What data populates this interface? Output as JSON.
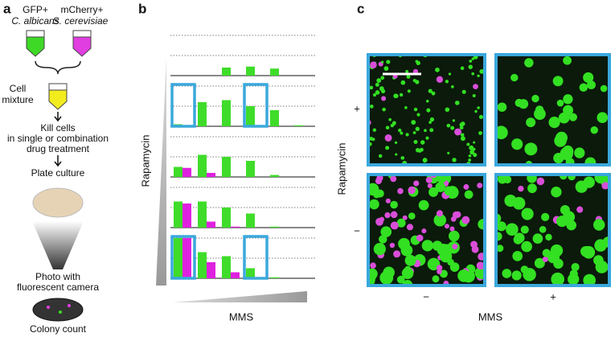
{
  "panel_a": {
    "label": "a",
    "tube_green": {
      "line1": "GFP+",
      "line2": "C. albicans"
    },
    "tube_magenta": {
      "line1": "mCherry+",
      "line2": "S. cerevisiae"
    },
    "mixture": [
      "Cell",
      "mixture"
    ],
    "kill": [
      "Kill cells",
      "in single or combination",
      "drug treatment"
    ],
    "plate": "Plate culture",
    "photo": [
      "Photo with",
      "fluorescent camera"
    ],
    "count": "Colony count"
  },
  "panel_b": {
    "label": "b",
    "y_label": "Rapamycin",
    "x_label": "MMS",
    "ylim": [
      0,
      2
    ],
    "yticks": [
      1,
      2
    ],
    "green_color": "#3fdc2a",
    "magenta_color": "#e020e0",
    "rows": [
      {
        "green": [
          0,
          0,
          0.4,
          0.45,
          0.35,
          0
        ],
        "magenta": [
          0,
          0,
          0,
          0,
          0,
          0
        ]
      },
      {
        "green": [
          0.1,
          1.2,
          1.3,
          1.0,
          0.8,
          0.05
        ],
        "magenta": [
          0.05,
          0,
          0,
          0,
          0,
          0
        ]
      },
      {
        "green": [
          0.5,
          1.1,
          1.0,
          0.8,
          0.1,
          0
        ],
        "magenta": [
          0.45,
          0.2,
          0,
          0,
          0,
          0
        ]
      },
      {
        "green": [
          1.3,
          1.3,
          1.0,
          0.7,
          0.05,
          0
        ],
        "magenta": [
          1.2,
          0.3,
          0.05,
          0,
          0,
          0
        ]
      },
      {
        "green": [
          2.0,
          1.3,
          1.1,
          0.5,
          0.05,
          0
        ],
        "magenta": [
          2.0,
          0.8,
          0.3,
          0,
          0,
          0
        ]
      }
    ]
  },
  "panel_c": {
    "label": "c",
    "y_label": "Rapamycin",
    "x_label": "MMS",
    "row_labels": [
      "+",
      "−"
    ],
    "col_labels": [
      "−",
      "+"
    ]
  }
}
